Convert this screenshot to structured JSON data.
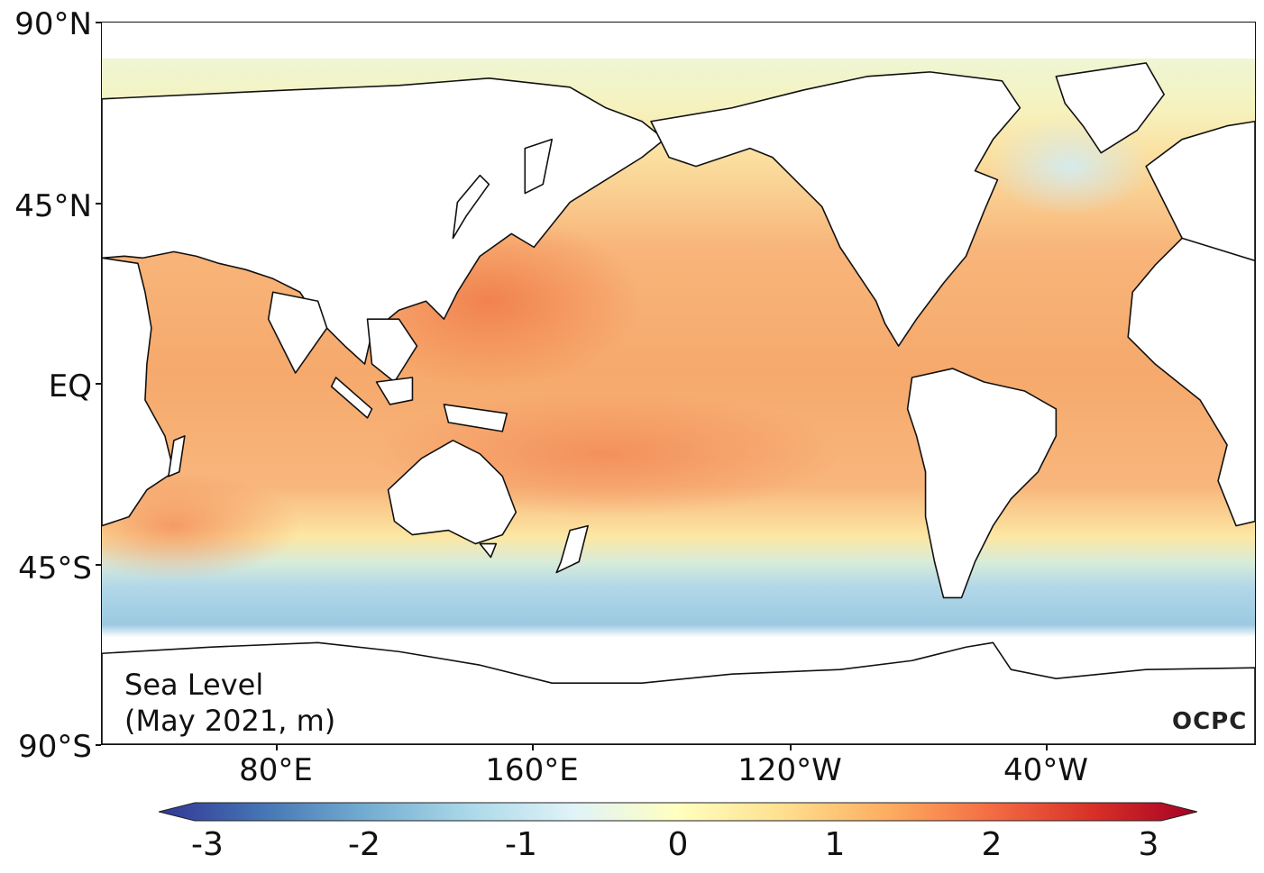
{
  "map": {
    "title_line1": "Sea Level",
    "title_line2": "(May 2021, m)",
    "logo": "OCPC",
    "lat_labels": [
      "90°N",
      "45°N",
      "EQ",
      "45°S",
      "90°S"
    ],
    "lon_labels": [
      "80°E",
      "160°E",
      "120°W",
      "40°W"
    ]
  },
  "colorbar": {
    "labels": [
      "-3",
      "-2",
      "-1",
      "0",
      "1",
      "2",
      "3"
    ],
    "min": -3,
    "max": 3,
    "colors": [
      "#313695",
      "#4575b4",
      "#74add1",
      "#abd9e9",
      "#e0f3f8",
      "#ffffbf",
      "#fee090",
      "#fdae61",
      "#f46d43",
      "#d73027",
      "#a50026"
    ]
  },
  "palette": {
    "warm_ocean": "#f9b574",
    "hot_ocean": "#f38a55",
    "cool_ocean": "#abd4e6",
    "neutral_ocean": "#fdf0a8",
    "arctic": "#eef6d4",
    "land": "#ffffff",
    "coast": "#111111"
  }
}
